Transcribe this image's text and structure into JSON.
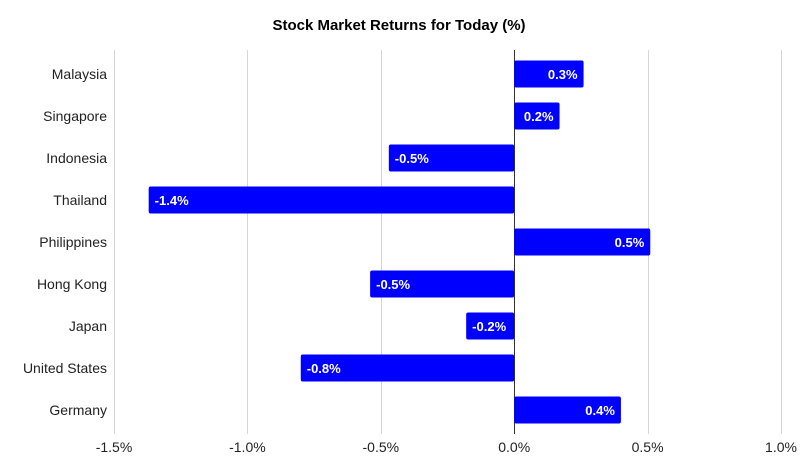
{
  "chart_data": {
    "type": "bar",
    "orientation": "horizontal",
    "title": "Stock Market Returns for Today (%)",
    "xlabel": "",
    "ylabel": "",
    "categories": [
      "Malaysia",
      "Singapore",
      "Indonesia",
      "Thailand",
      "Philippines",
      "Hong Kong",
      "Japan",
      "United States",
      "Germany"
    ],
    "values": [
      0.26,
      0.17,
      -0.47,
      -1.37,
      0.51,
      -0.54,
      -0.18,
      -0.8,
      0.4
    ],
    "data_labels": [
      "0.3%",
      "0.2%",
      "-0.5%",
      "-1.4%",
      "0.5%",
      "-0.5%",
      "-0.2%",
      "-0.8%",
      "0.4%"
    ],
    "xlim": [
      -1.5,
      1.0
    ],
    "xticks": [
      -1.5,
      -1.0,
      -0.5,
      0.0,
      0.5,
      1.0
    ],
    "xtick_labels": [
      "-1.5%",
      "-1.0%",
      "-0.5%",
      "0.0%",
      "0.5%",
      "1.0%"
    ],
    "grid": true,
    "bar_color": "#0000ff",
    "legend": "none"
  }
}
